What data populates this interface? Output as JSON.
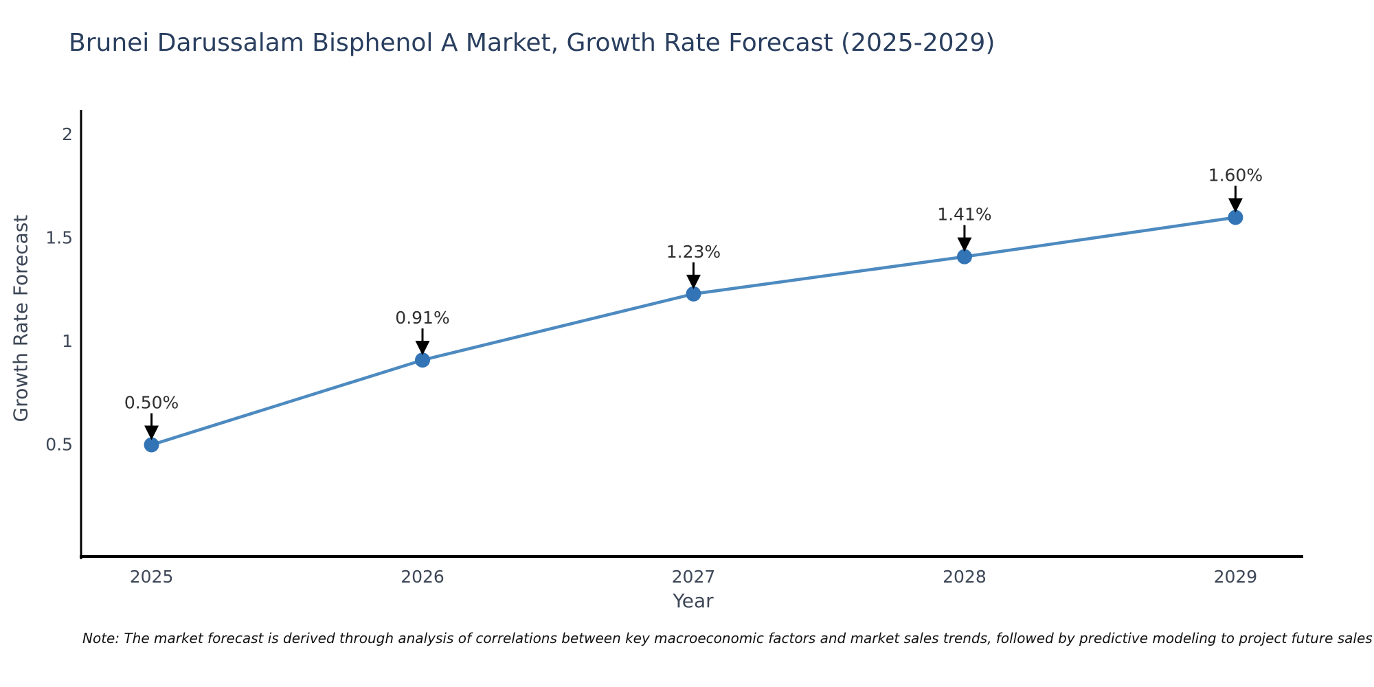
{
  "figure": {
    "note": "Note: The market forecast is derived through analysis of correlations between key macroeconomic factors and market sales trends, followed by predictive modeling to project future sales"
  },
  "chart_data": {
    "type": "line",
    "title": "Brunei Darussalam Bisphenol A Market, Growth Rate Forecast (2025-2029)",
    "xlabel": "Year",
    "ylabel": "Growth Rate Forecast",
    "x": [
      2025,
      2026,
      2027,
      2028,
      2029
    ],
    "series": [
      {
        "name": "Growth Rate Forecast",
        "values": [
          0.5,
          0.91,
          1.23,
          1.41,
          1.6
        ],
        "point_labels": [
          "0.50%",
          "0.91%",
          "1.23%",
          "1.41%",
          "1.60%"
        ]
      }
    ],
    "x_tick_labels": [
      "2025",
      "2026",
      "2027",
      "2028",
      "2029"
    ],
    "y_ticks": [
      0.5,
      1,
      1.5,
      2
    ],
    "y_tick_labels": [
      "0.5",
      "1",
      "1.5",
      "2"
    ],
    "xlim": [
      2024.74,
      2029.25
    ],
    "ylim": [
      -0.04,
      2.12
    ],
    "grid": false,
    "legend": "none",
    "annotation_style": "value label with downward black arrow above each data point",
    "colors": {
      "line": "#4d8ac0",
      "marker": "#3274b5",
      "axis": "#000000",
      "arrow": "#000000",
      "title_text": "#2a3f5f",
      "tick_text": "#3d4757",
      "point_label_text": "#2f2f2f",
      "note_text": "#111111",
      "background": "#ffffff"
    }
  }
}
